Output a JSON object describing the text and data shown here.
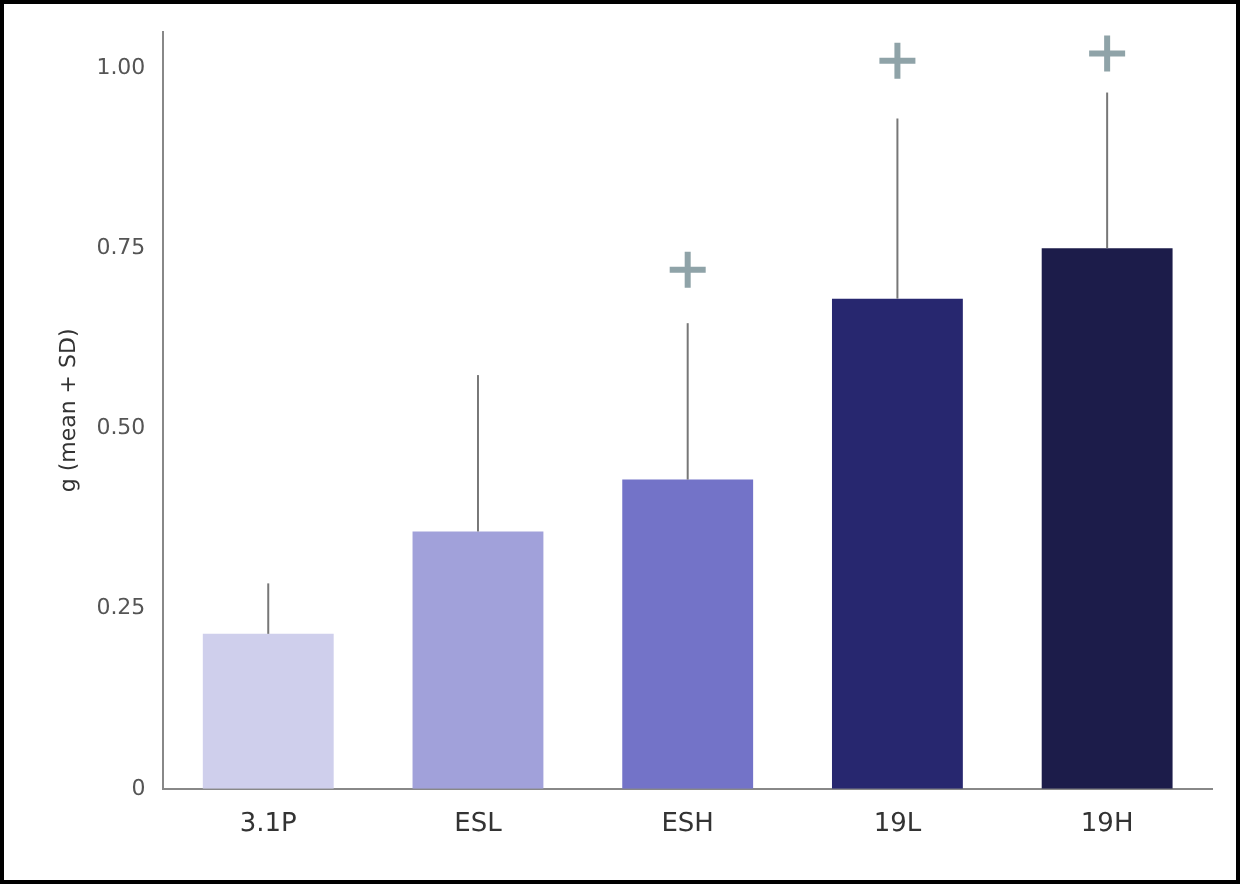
{
  "chart_data": {
    "type": "bar",
    "ylabel": "g (mean + SD)",
    "categories": [
      "3.1P",
      "ESL",
      "ESH",
      "19L",
      "19H"
    ],
    "series": [
      {
        "colors": [
          "#cfcfec",
          "#a1a1da",
          "#7373c8",
          "#27276f",
          "#1c1c4a"
        ],
        "values": [
          0.215,
          0.357,
          0.429,
          0.68,
          0.75
        ],
        "errors": [
          [
            0.215,
            0.285
          ],
          [
            0.357,
            0.574
          ],
          [
            0.429,
            0.646
          ],
          [
            0.68,
            0.93
          ],
          [
            0.75,
            0.966
          ]
        ]
      },
      {
        "type": "scatter",
        "color": "#8fa3a8",
        "marker": "cross",
        "x": [
          "ESH",
          "19L",
          "19H"
        ],
        "values": [
          0.72,
          1.01,
          1.02
        ]
      }
    ],
    "ylim": [
      0,
      1.05
    ],
    "yticks": [
      0,
      0.25,
      {
        "value": 0.5,
        "label": "0.50"
      },
      0.75,
      {
        "value": 1,
        "label": "1.00"
      }
    ],
    "grid": false,
    "legend": false
  }
}
